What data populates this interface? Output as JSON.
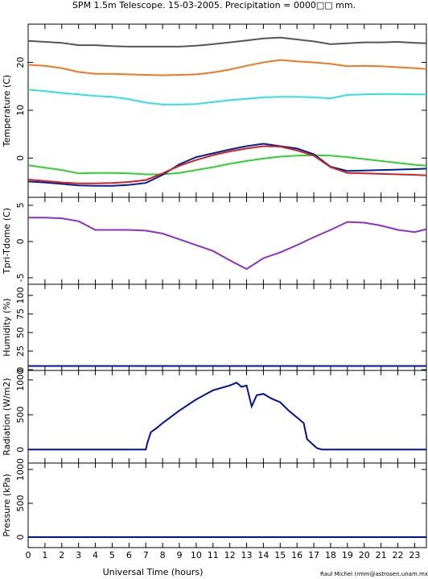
{
  "title": "SPM 1.5m Telescope. 15-03-2005. Precipitation = 0000□□ mm.",
  "x_axis": {
    "label": "Universal Time (hours)",
    "xlim": [
      0,
      23.7
    ],
    "xticks": [
      0,
      1,
      2,
      3,
      4,
      5,
      6,
      7,
      8,
      9,
      10,
      11,
      12,
      13,
      14,
      15,
      16,
      17,
      18,
      19,
      20,
      21,
      22,
      23
    ]
  },
  "credit": "Raul Michel (rmm@astrosen.unam.mx)",
  "chart_data": [
    {
      "type": "line",
      "ylabel": "Temperature (C)",
      "ylim": [
        -8.2,
        28
      ],
      "yticks": [
        0,
        10,
        20
      ],
      "x": [
        0,
        1,
        2,
        3,
        4,
        5,
        6,
        7,
        8,
        9,
        10,
        11,
        12,
        13,
        14,
        15,
        16,
        17,
        18,
        19,
        20,
        21,
        22,
        23,
        23.7
      ],
      "series": [
        {
          "color": "#555555",
          "values": [
            24.5,
            24.3,
            24.1,
            23.6,
            23.6,
            23.4,
            23.3,
            23.3,
            23.3,
            23.3,
            23.5,
            23.8,
            24.2,
            24.6,
            25.0,
            25.2,
            24.8,
            24.4,
            23.8,
            24.0,
            24.2,
            24.2,
            24.3,
            24.1,
            24.0
          ]
        },
        {
          "color": "#f07820",
          "values": [
            19.5,
            19.3,
            18.8,
            18.0,
            17.6,
            17.6,
            17.5,
            17.4,
            17.3,
            17.4,
            17.5,
            17.9,
            18.5,
            19.3,
            20.0,
            20.5,
            20.2,
            20.0,
            19.7,
            19.2,
            19.3,
            19.2,
            19.0,
            18.8,
            18.6
          ]
        },
        {
          "color": "#30e0e0",
          "values": [
            14.3,
            14.0,
            13.6,
            13.3,
            13.0,
            12.8,
            12.3,
            11.6,
            11.2,
            11.2,
            11.3,
            11.7,
            12.1,
            12.4,
            12.7,
            12.8,
            12.8,
            12.7,
            12.5,
            13.2,
            13.3,
            13.4,
            13.4,
            13.3,
            13.3
          ]
        },
        {
          "color": "#30d030",
          "values": [
            -1.5,
            -2.0,
            -2.5,
            -3.2,
            -3.1,
            -3.1,
            -3.2,
            -3.4,
            -3.4,
            -3.1,
            -2.5,
            -1.9,
            -1.2,
            -0.6,
            -0.1,
            0.3,
            0.5,
            0.6,
            0.5,
            0.2,
            -0.2,
            -0.6,
            -1.0,
            -1.4,
            -1.6
          ]
        },
        {
          "color": "#0020a0",
          "values": [
            -4.9,
            -5.1,
            -5.4,
            -5.7,
            -5.8,
            -5.8,
            -5.6,
            -5.2,
            -3.5,
            -1.3,
            0.2,
            1.0,
            1.8,
            2.5,
            3.0,
            2.5,
            2.0,
            0.8,
            -1.8,
            -2.7,
            -2.6,
            -2.5,
            -2.4,
            -2.3,
            -2.2
          ]
        },
        {
          "color": "#d02020",
          "values": [
            -4.5,
            -4.8,
            -5.1,
            -5.3,
            -5.3,
            -5.2,
            -5.0,
            -4.6,
            -3.2,
            -1.6,
            -0.4,
            0.6,
            1.4,
            2.0,
            2.5,
            2.4,
            1.6,
            0.5,
            -1.9,
            -3.1,
            -3.2,
            -3.3,
            -3.4,
            -3.5,
            -3.6
          ]
        }
      ]
    },
    {
      "type": "line",
      "ylabel": "Tpri-Tdome (C)",
      "ylim": [
        -5.9,
        6.1
      ],
      "yticks": [
        -5,
        0,
        5
      ],
      "x": [
        0,
        1,
        2,
        3,
        4,
        5,
        6,
        7,
        8,
        9,
        10,
        11,
        12,
        13,
        14,
        15,
        16,
        17,
        18,
        19,
        20,
        21,
        22,
        23,
        23.7
      ],
      "series": [
        {
          "color": "#8a30d0",
          "values": [
            3.3,
            3.3,
            3.2,
            2.8,
            1.6,
            1.6,
            1.6,
            1.5,
            1.1,
            0.3,
            -0.5,
            -1.3,
            -2.6,
            -3.8,
            -2.3,
            -1.5,
            -0.5,
            0.6,
            1.6,
            2.7,
            2.6,
            2.2,
            1.6,
            1.3,
            1.7
          ]
        }
      ]
    },
    {
      "type": "line",
      "ylabel": "Humidity (%)",
      "ylim": [
        -1,
        115
      ],
      "yticks": [
        0,
        25,
        50,
        75,
        100
      ],
      "x": [
        0,
        23.7
      ],
      "series": [
        {
          "color": "#0010a0",
          "values": [
            5,
            5
          ]
        }
      ]
    },
    {
      "type": "line",
      "ylabel": "Radiation (W/m2)",
      "ylim": [
        -193,
        1136
      ],
      "yticks": [
        0,
        500,
        1000
      ],
      "x": [
        0,
        7,
        7.1,
        7.3,
        7.6,
        8,
        9,
        10,
        11,
        12,
        12.4,
        12.7,
        13,
        13.3,
        13.6,
        14,
        14.5,
        15,
        15.5,
        16,
        16.4,
        16.6,
        17,
        17.2,
        17.5,
        18,
        23.7
      ],
      "series": [
        {
          "color": "#0010a0",
          "values": [
            0,
            0,
            100,
            250,
            300,
            380,
            560,
            720,
            850,
            920,
            960,
            900,
            920,
            620,
            780,
            800,
            730,
            680,
            560,
            460,
            380,
            150,
            60,
            20,
            0,
            0,
            0
          ]
        }
      ]
    },
    {
      "type": "line",
      "ylabel": "Pressure (kPa)",
      "ylim": [
        -155,
        1095
      ],
      "yticks": [
        0,
        500,
        1000
      ],
      "x": [
        0,
        23.7
      ],
      "series": [
        {
          "color": "#0010a0",
          "values": [
            0,
            0
          ]
        }
      ]
    }
  ]
}
